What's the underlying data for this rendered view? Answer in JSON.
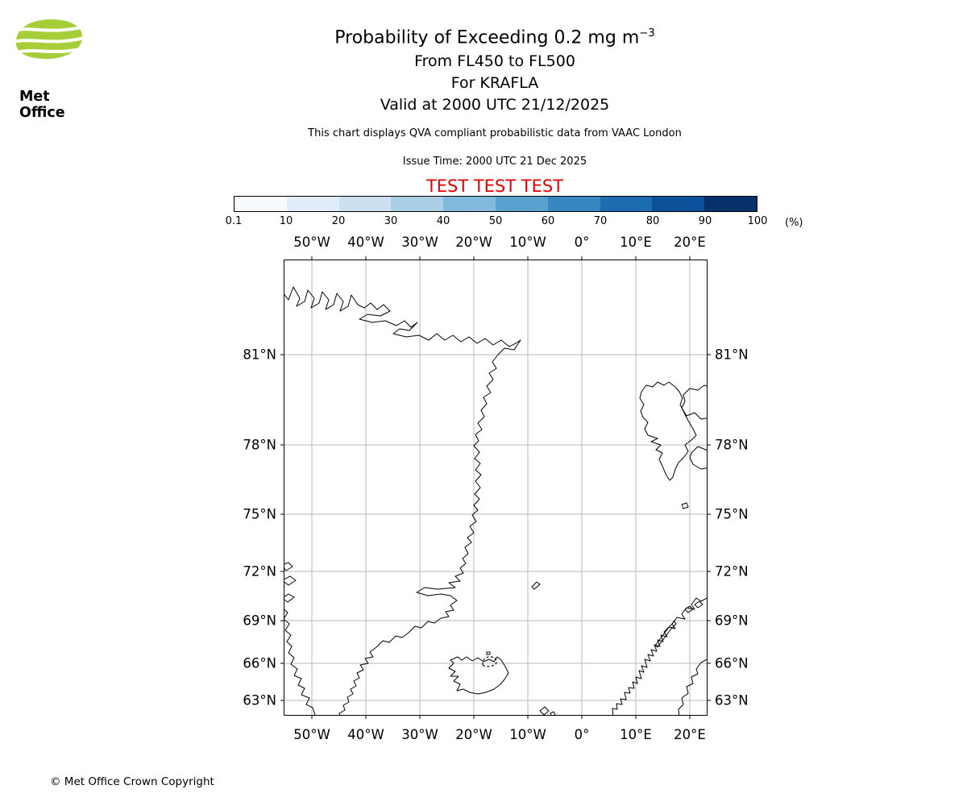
{
  "header": {
    "logo_text": "Met Office",
    "title_main": "Probability of Exceeding 0.2 mg m",
    "title_sup": "−3",
    "subtitle_levels": "From FL450 to FL500",
    "subtitle_volcano": "For KRAFLA",
    "subtitle_valid": "Valid at 2000 UTC 21/12/2025",
    "qva_note": "This chart displays QVA compliant probabilistic data from VAAC London",
    "issue_time": "Issue Time: 2000 UTC 21 Dec 2025",
    "test_banner": "TEST TEST TEST",
    "test_color": "#e60000",
    "logo_green": "#a6ce39"
  },
  "colorbar": {
    "tick_labels": [
      "0.1",
      "10",
      "20",
      "30",
      "40",
      "50",
      "60",
      "70",
      "80",
      "90",
      "100"
    ],
    "unit_label": "(%)",
    "segment_colors": [
      "#f7fbff",
      "#e1edf8",
      "#cde0f1",
      "#abd0e6",
      "#82badb",
      "#59a1cf",
      "#3787c0",
      "#1d6cb1",
      "#0b5199",
      "#08306b"
    ]
  },
  "map": {
    "lon_labels": [
      "50°W",
      "40°W",
      "30°W",
      "20°W",
      "10°W",
      "0°",
      "10°E",
      "20°E"
    ],
    "lat_labels": [
      "81°N",
      "78°N",
      "75°N",
      "72°N",
      "69°N",
      "66°N",
      "63°N"
    ]
  },
  "footer": {
    "copyright": "© Met Office Crown Copyright"
  },
  "chart_data": {
    "type": "map",
    "title": "Probability of Exceeding 0.2 mg m⁻³",
    "flight_level_range": "FL450 to FL500",
    "volcano": "KRAFLA",
    "valid_time": "2000 UTC 21/12/2025",
    "issue_time": "2000 UTC 21 Dec 2025",
    "data_source": "QVA compliant probabilistic data from VAAC London",
    "status_watermark": "TEST TEST TEST",
    "colorbar": {
      "levels_percent": [
        0.1,
        10,
        20,
        30,
        40,
        50,
        60,
        70,
        80,
        90,
        100
      ],
      "unit": "%",
      "palette": "white to dark blue (Blues)"
    },
    "grid": {
      "longitude_gridlines": [
        "50W",
        "40W",
        "30W",
        "20W",
        "10W",
        "0",
        "10E",
        "20E"
      ],
      "latitude_gridlines": [
        "81N",
        "78N",
        "75N",
        "72N",
        "69N",
        "66N",
        "63N"
      ],
      "projection": "mercator-like, North Atlantic"
    },
    "map_features": [
      "Greenland",
      "Iceland",
      "Jan Mayen",
      "Svalbard",
      "Bear Island",
      "Norway coast",
      "Sweden (Gulf of Bothnia coast)",
      "Faroe Islands"
    ],
    "probability_shading": "no shaded probability areas visible (below 0.1%)",
    "contour_marker": "small dashed contour near Krafla volcano, NE Iceland"
  }
}
